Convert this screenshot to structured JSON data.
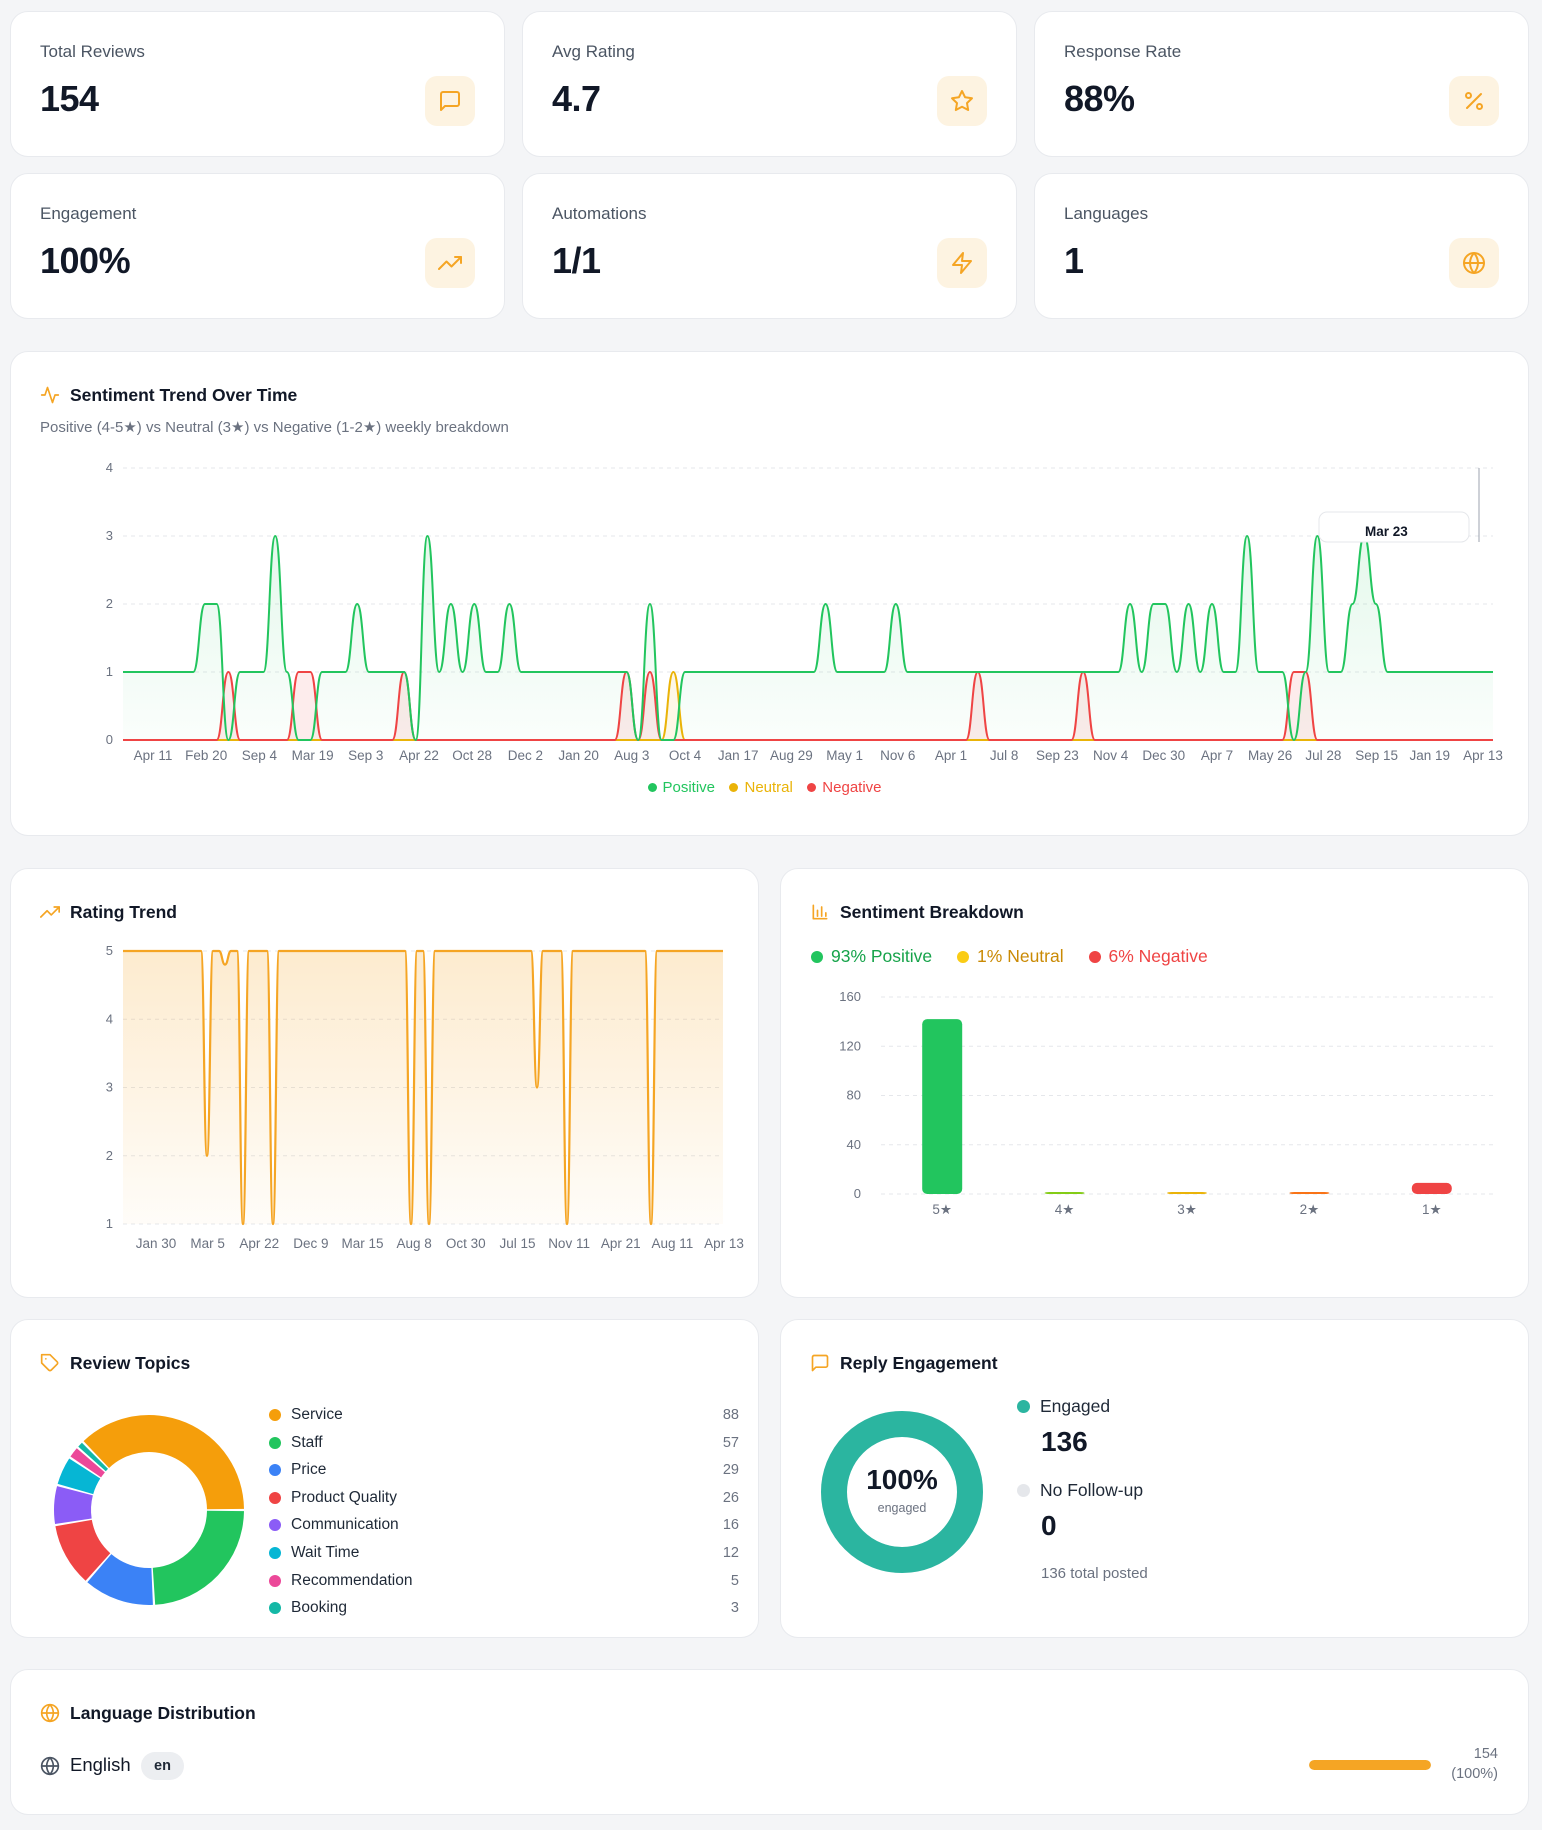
{
  "stats": [
    {
      "label": "Total Reviews",
      "value": "154",
      "icon": "message-square-icon"
    },
    {
      "label": "Avg Rating",
      "value": "4.7",
      "icon": "star-icon"
    },
    {
      "label": "Response Rate",
      "value": "88%",
      "icon": "percent-icon"
    },
    {
      "label": "Engagement",
      "value": "100%",
      "icon": "trending-up-icon"
    },
    {
      "label": "Automations",
      "value": "1/1",
      "icon": "zap-icon"
    },
    {
      "label": "Languages",
      "value": "1",
      "icon": "globe-icon"
    }
  ],
  "sentiment_trend": {
    "title": "Sentiment Trend Over Time",
    "subtitle": "Positive (4-5★) vs Neutral (3★) vs Negative (1-2★) weekly breakdown",
    "tooltip_label": "Mar 23",
    "legend": {
      "positive": "Positive",
      "neutral": "Neutral",
      "negative": "Negative"
    }
  },
  "rating_trend": {
    "title": "Rating Trend"
  },
  "sentiment_breakdown": {
    "title": "Sentiment Breakdown",
    "positive_label": "93% Positive",
    "neutral_label": "1% Neutral",
    "negative_label": "6% Negative"
  },
  "review_topics": {
    "title": "Review Topics",
    "items": [
      {
        "name": "Service",
        "count": "88",
        "color": "#f59e0b"
      },
      {
        "name": "Staff",
        "count": "57",
        "color": "#22c55e"
      },
      {
        "name": "Price",
        "count": "29",
        "color": "#3b82f6"
      },
      {
        "name": "Product Quality",
        "count": "26",
        "color": "#ef4444"
      },
      {
        "name": "Communication",
        "count": "16",
        "color": "#8b5cf6"
      },
      {
        "name": "Wait Time",
        "count": "12",
        "color": "#06b6d4"
      },
      {
        "name": "Recommendation",
        "count": "5",
        "color": "#ec4899"
      },
      {
        "name": "Booking",
        "count": "3",
        "color": "#14b8a6"
      }
    ]
  },
  "reply_engagement": {
    "title": "Reply Engagement",
    "percent": "100%",
    "percent_caption": "engaged",
    "engaged_label": "Engaged",
    "engaged_value": "136",
    "no_followup_label": "No Follow-up",
    "no_followup_value": "0",
    "total_posted": "136 total posted",
    "engaged_fraction": 1.0
  },
  "language_distribution": {
    "title": "Language Distribution",
    "language": "English",
    "code": "en",
    "count": "154",
    "percent_text": "(100%)",
    "fraction": 1.0
  },
  "colors": {
    "accent": "#f5a524",
    "positive": "#22c55e",
    "neutral": "#eab308",
    "negative": "#ef4444",
    "engaged": "#2bb5a0"
  },
  "chart_data": [
    {
      "type": "line",
      "title": "Sentiment Trend Over Time",
      "x_tick_labels": [
        "Apr 11",
        "Feb 20",
        "Sep 4",
        "Mar 19",
        "Sep 3",
        "Apr 22",
        "Oct 28",
        "Dec 2",
        "Jan 20",
        "Aug 3",
        "Oct 4",
        "Jan 17",
        "Aug 29",
        "May 1",
        "Nov 6",
        "Apr 1",
        "Jul 8",
        "Sep 23",
        "Nov 4",
        "Dec 30",
        "Apr 7",
        "May 26",
        "Jul 28",
        "Sep 15",
        "Jan 19",
        "Apr 13"
      ],
      "ylim": [
        0,
        4
      ],
      "y_ticks": [
        0,
        1,
        2,
        3,
        4
      ],
      "grid": true,
      "legend": "bottom-center",
      "series": [
        {
          "name": "Positive",
          "color": "#22c55e",
          "values": [
            1,
            1,
            1,
            1,
            1,
            1,
            1,
            2,
            2,
            0,
            1,
            1,
            1,
            3,
            1,
            0,
            0,
            1,
            1,
            1,
            2,
            1,
            1,
            1,
            1,
            0,
            3,
            1,
            2,
            1,
            2,
            1,
            1,
            2,
            1,
            1,
            1,
            1,
            1,
            1,
            1,
            1,
            1,
            1,
            0,
            2,
            0,
            0,
            1,
            1,
            1,
            1,
            1,
            1,
            1,
            1,
            1,
            1,
            1,
            1,
            2,
            1,
            1,
            1,
            1,
            1,
            2,
            1,
            1,
            1,
            1,
            1,
            1,
            1,
            1,
            1,
            1,
            1,
            1,
            1,
            1,
            1,
            1,
            1,
            1,
            1,
            2,
            1,
            2,
            2,
            1,
            2,
            1,
            2,
            1,
            1,
            3,
            1,
            1,
            1,
            0,
            1,
            3,
            1,
            1,
            2,
            3,
            2,
            1,
            1,
            1,
            1,
            1,
            1,
            1,
            1,
            1,
            1
          ]
        },
        {
          "name": "Neutral",
          "color": "#eab308",
          "values": [
            0,
            0,
            0,
            0,
            0,
            0,
            0,
            0,
            0,
            0,
            0,
            0,
            0,
            0,
            0,
            0,
            0,
            0,
            0,
            0,
            0,
            0,
            0,
            0,
            0,
            0,
            0,
            0,
            0,
            0,
            0,
            0,
            0,
            0,
            0,
            0,
            0,
            0,
            0,
            0,
            0,
            0,
            0,
            0,
            0,
            0,
            0,
            1,
            0,
            0,
            0,
            0,
            0,
            0,
            0,
            0,
            0,
            0,
            0,
            0,
            0,
            0,
            0,
            0,
            0,
            0,
            0,
            0,
            0,
            0,
            0,
            0,
            0,
            0,
            0,
            0,
            0,
            0,
            0,
            0,
            0,
            0,
            0,
            0,
            0,
            0,
            0,
            0,
            0,
            0,
            0,
            0,
            0,
            0,
            0,
            0,
            0,
            0,
            0,
            0,
            0,
            0,
            0,
            0,
            0,
            0,
            0,
            0,
            0,
            0,
            0,
            0,
            0,
            0,
            0,
            0,
            0,
            0
          ]
        },
        {
          "name": "Negative",
          "color": "#ef4444",
          "values": [
            0,
            0,
            0,
            0,
            0,
            0,
            0,
            0,
            0,
            1,
            0,
            0,
            0,
            0,
            0,
            1,
            1,
            0,
            0,
            0,
            0,
            0,
            0,
            0,
            1,
            0,
            0,
            0,
            0,
            0,
            0,
            0,
            0,
            0,
            0,
            0,
            0,
            0,
            0,
            0,
            0,
            0,
            0,
            1,
            0,
            1,
            0,
            0,
            0,
            0,
            0,
            0,
            0,
            0,
            0,
            0,
            0,
            0,
            0,
            0,
            0,
            0,
            0,
            0,
            0,
            0,
            0,
            0,
            0,
            0,
            0,
            0,
            0,
            1,
            0,
            0,
            0,
            0,
            0,
            0,
            0,
            0,
            1,
            0,
            0,
            0,
            0,
            0,
            0,
            0,
            0,
            0,
            0,
            0,
            0,
            0,
            0,
            0,
            0,
            0,
            1,
            1,
            0,
            0,
            0,
            0,
            0,
            0,
            0,
            0,
            0,
            0,
            0,
            0,
            0,
            0,
            0,
            0
          ]
        }
      ]
    },
    {
      "type": "area",
      "title": "Rating Trend",
      "x_tick_labels": [
        "Jan 30",
        "Mar 5",
        "Apr 22",
        "Dec 9",
        "Mar 15",
        "Aug 8",
        "Oct 30",
        "Jul 15",
        "Nov 11",
        "Apr 21",
        "Aug 11",
        "Apr 13"
      ],
      "ylim": [
        1,
        5
      ],
      "y_ticks": [
        1,
        2,
        3,
        4,
        5
      ],
      "grid": true,
      "series": [
        {
          "name": "",
          "color": "#f5a524",
          "values": [
            5,
            5,
            5,
            5,
            5,
            5,
            5,
            5,
            5,
            5,
            5,
            5,
            5,
            5,
            2,
            5,
            5,
            4.8,
            5,
            5,
            1,
            5,
            5,
            5,
            5,
            1,
            5,
            5,
            5,
            5,
            5,
            5,
            5,
            5,
            5,
            5,
            5,
            5,
            5,
            5,
            5,
            5,
            5,
            5,
            5,
            5,
            5,
            5,
            1,
            5,
            5,
            1,
            5,
            5,
            5,
            5,
            5,
            5,
            5,
            5,
            5,
            5,
            5,
            5,
            5,
            5,
            5,
            5,
            5,
            3,
            5,
            5,
            5,
            5,
            1,
            5,
            5,
            5,
            5,
            5,
            5,
            5,
            5,
            5,
            5,
            5,
            5,
            5,
            1,
            5,
            5,
            5,
            5,
            5,
            5,
            5,
            5,
            5,
            5,
            5,
            5
          ]
        }
      ]
    },
    {
      "type": "bar",
      "title": "Sentiment Breakdown",
      "categories": [
        "5★",
        "4★",
        "3★",
        "2★",
        "1★"
      ],
      "values": [
        142,
        1,
        1,
        1,
        9
      ],
      "colors": [
        "#22c55e",
        "#84cc16",
        "#eab308",
        "#f97316",
        "#ef4444"
      ],
      "ylim": [
        0,
        160
      ],
      "y_ticks": [
        0,
        40,
        80,
        120,
        160
      ],
      "grid": true
    },
    {
      "type": "pie",
      "title": "Review Topics",
      "categories": [
        "Service",
        "Staff",
        "Price",
        "Product Quality",
        "Communication",
        "Wait Time",
        "Recommendation",
        "Booking"
      ],
      "values": [
        88,
        57,
        29,
        26,
        16,
        12,
        5,
        3
      ],
      "colors": [
        "#f59e0b",
        "#22c55e",
        "#3b82f6",
        "#ef4444",
        "#8b5cf6",
        "#06b6d4",
        "#ec4899",
        "#14b8a6"
      ]
    }
  ]
}
